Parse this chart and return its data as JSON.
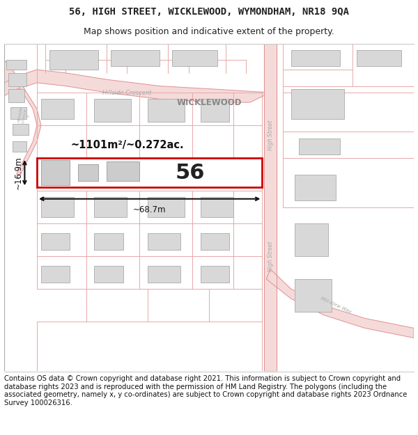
{
  "title_line1": "56, HIGH STREET, WICKLEWOOD, WYMONDHAM, NR18 9QA",
  "title_line2": "Map shows position and indicative extent of the property.",
  "footer_text": "Contains OS data © Crown copyright and database right 2021. This information is subject to Crown copyright and database rights 2023 and is reproduced with the permission of HM Land Registry. The polygons (including the associated geometry, namely x, y co-ordinates) are subject to Crown copyright and database rights 2023 Ordnance Survey 100026316.",
  "property_number": "56",
  "area_label": "~1101m²/~0.272ac.",
  "width_label": "~68.7m",
  "height_label": "~16.9m",
  "map_bg": "#ffffff",
  "road_color": "#f5dada",
  "road_outline": "#e09090",
  "parcel_color": "#e8a8a8",
  "highlight_color": "#cc0000",
  "highlight_fill": "#ffffff",
  "building_fill": "#d8d8d8",
  "building_outline": "#aaaaaa",
  "label_color": "#aaaaaa",
  "title_fontsize": 10,
  "subtitle_fontsize": 9,
  "footer_fontsize": 7.2
}
